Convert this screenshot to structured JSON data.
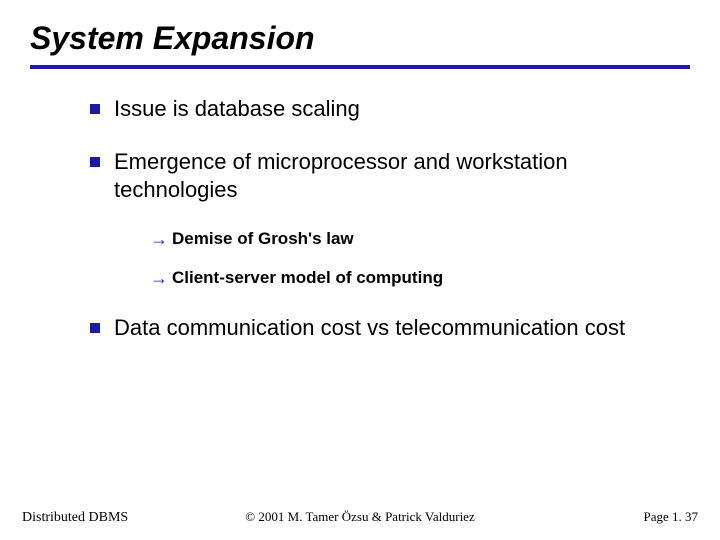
{
  "title": "System Expansion",
  "colors": {
    "rule": "#1f1aa3",
    "bullet": "#1f1aa3",
    "arrow": "#1f1aa3",
    "text": "#000000",
    "background": "#ffffff"
  },
  "bullets": {
    "b0": "Issue is database scaling",
    "b1": "Emergence of microprocessor and workstation technologies",
    "b2": "Data communication cost vs telecommunication cost"
  },
  "sub": {
    "s0": "Demise of Grosh's law",
    "s1": "Client-server model of computing"
  },
  "footer": {
    "left": "Distributed DBMS",
    "center": "© 2001 M. Tamer Özsu & Patrick Valduriez",
    "right": "Page 1. 37"
  },
  "typography": {
    "title_fontsize": 32,
    "top_fontsize": 22,
    "sub_fontsize": 17,
    "footer_fontsize": 13
  }
}
